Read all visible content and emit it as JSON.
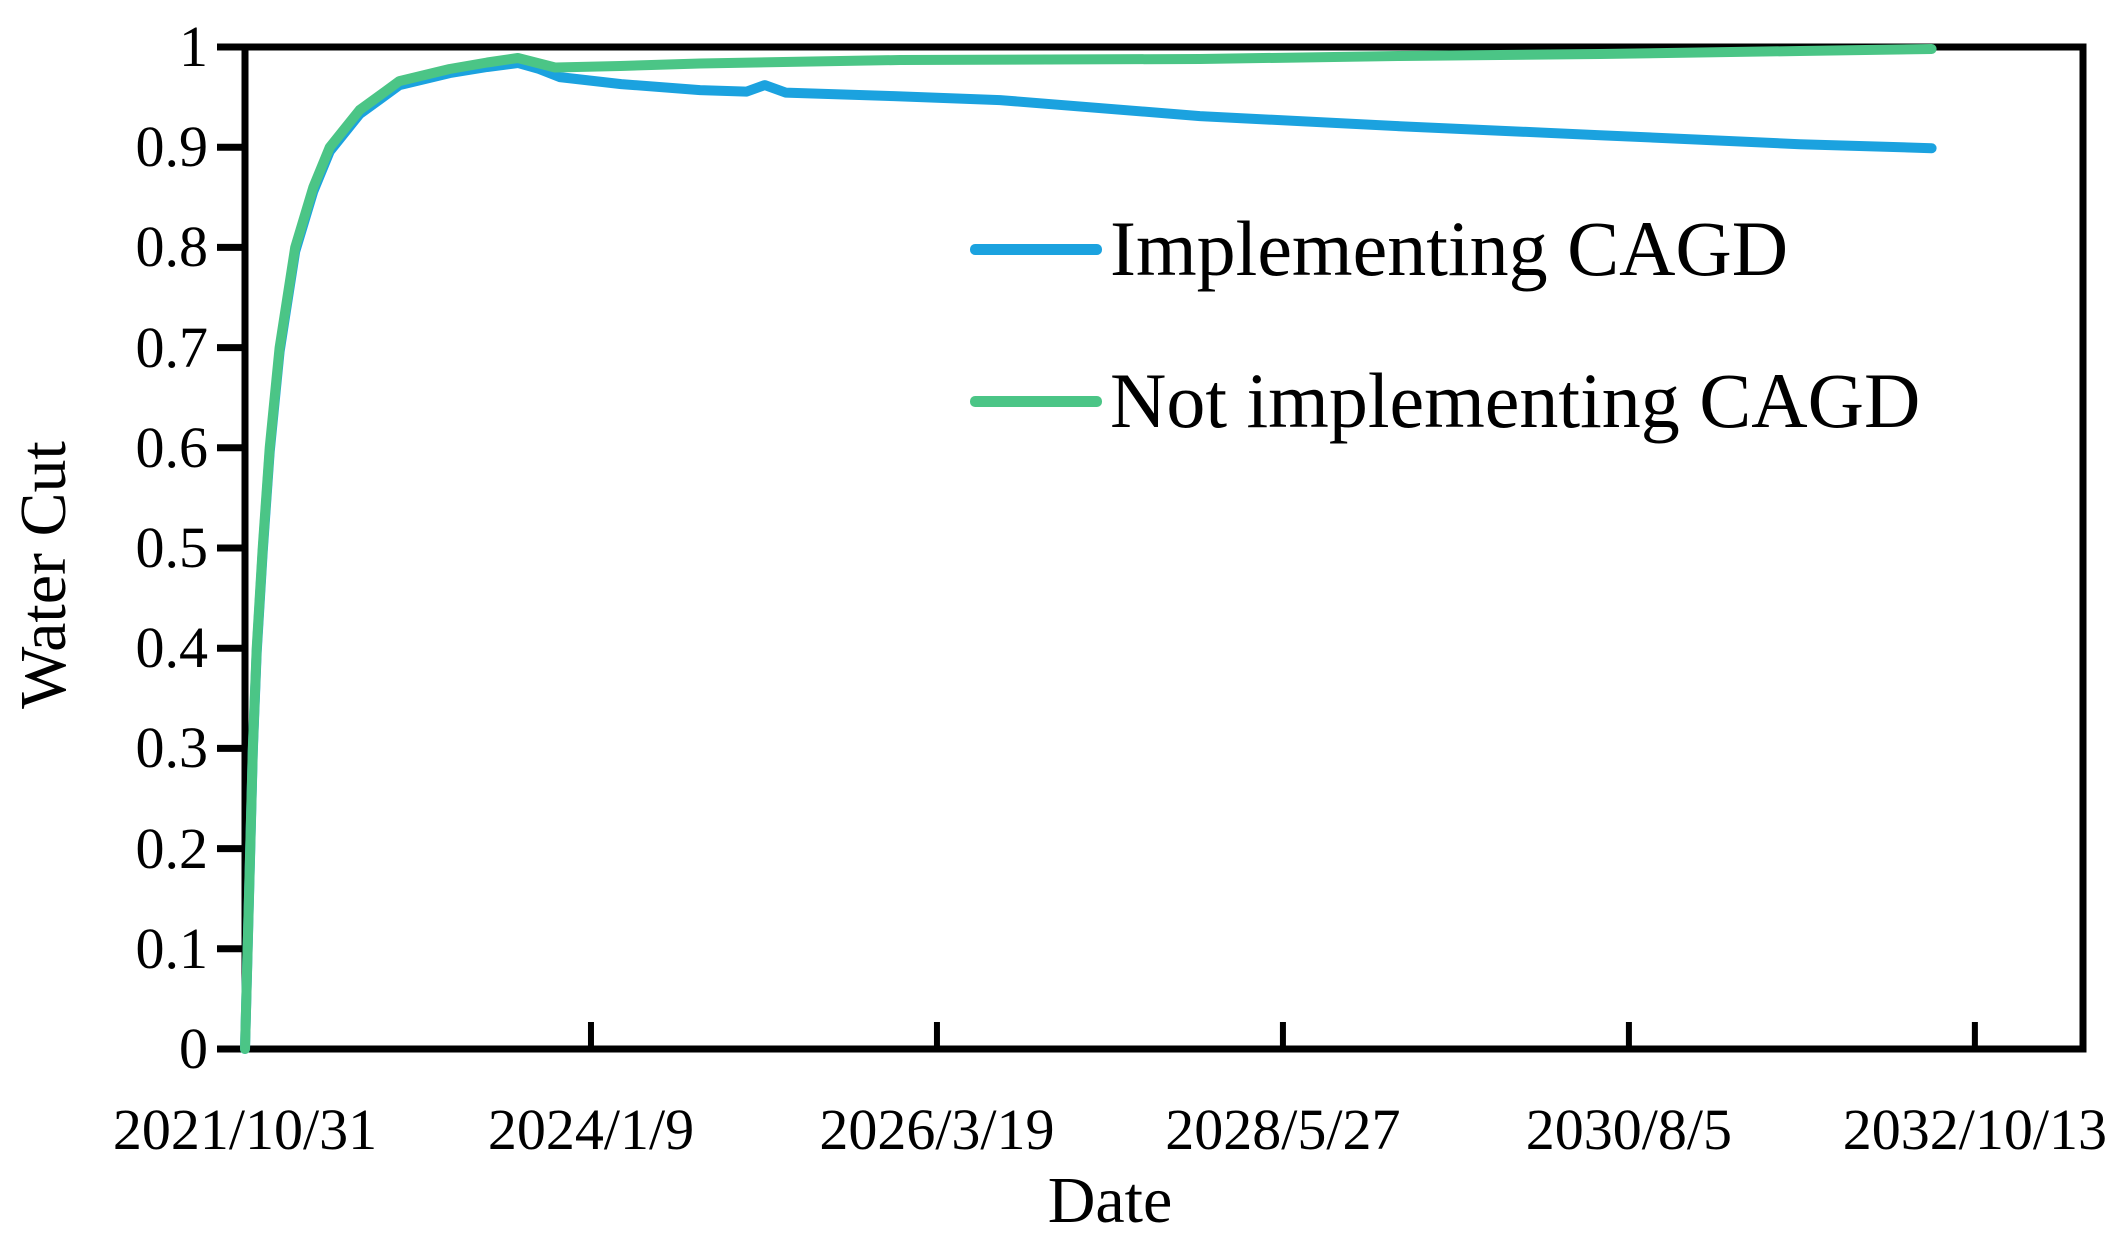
{
  "chart_data": {
    "type": "line",
    "title": "",
    "xlabel": "Date",
    "ylabel": "Water Cut",
    "x_tick_labels": [
      "2021/10/31",
      "2024/1/9",
      "2026/3/19",
      "2028/5/27",
      "2030/8/5",
      "2032/10/13"
    ],
    "x_tick_days": [
      0,
      800,
      1600,
      2400,
      3200,
      4000
    ],
    "x_range_days": [
      0,
      4250
    ],
    "y_tick_labels": [
      "0",
      "0.1",
      "0.2",
      "0.3",
      "0.4",
      "0.5",
      "0.6",
      "0.7",
      "0.8",
      "0.9",
      "1"
    ],
    "y_tick_values": [
      0,
      0.1,
      0.2,
      0.3,
      0.4,
      0.5,
      0.6,
      0.7,
      0.8,
      0.9,
      1
    ],
    "ylim": [
      0,
      1
    ],
    "grid": false,
    "legend_position": "inside-upper-middle",
    "axis_color": "#000000",
    "series": [
      {
        "name": "Implementing CAGD",
        "color": "#1BA2DF",
        "points": [
          [
            0,
            0
          ],
          [
            6,
            0.098
          ],
          [
            12,
            0.197
          ],
          [
            18,
            0.297
          ],
          [
            27,
            0.396
          ],
          [
            41,
            0.496
          ],
          [
            57,
            0.596
          ],
          [
            80,
            0.696
          ],
          [
            116,
            0.796
          ],
          [
            158,
            0.856
          ],
          [
            196,
            0.896
          ],
          [
            265,
            0.933
          ],
          [
            357,
            0.962
          ],
          [
            473,
            0.974
          ],
          [
            560,
            0.98
          ],
          [
            631,
            0.984
          ],
          [
            680,
            0.978
          ],
          [
            728,
            0.97
          ],
          [
            870,
            0.963
          ],
          [
            1052,
            0.957
          ],
          [
            1160,
            0.9555
          ],
          [
            1202,
            0.962
          ],
          [
            1250,
            0.9545
          ],
          [
            1500,
            0.951
          ],
          [
            1746,
            0.947
          ],
          [
            2208,
            0.931
          ],
          [
            2670,
            0.921
          ],
          [
            3133,
            0.912
          ],
          [
            3595,
            0.903
          ],
          [
            3900,
            0.899
          ]
        ]
      },
      {
        "name": "Not implementing CAGD",
        "color": "#4BC586",
        "points": [
          [
            0,
            0
          ],
          [
            6,
            0.1
          ],
          [
            12,
            0.2
          ],
          [
            18,
            0.3
          ],
          [
            27,
            0.4
          ],
          [
            41,
            0.5
          ],
          [
            57,
            0.6
          ],
          [
            80,
            0.7
          ],
          [
            116,
            0.8
          ],
          [
            158,
            0.86
          ],
          [
            196,
            0.9
          ],
          [
            265,
            0.937
          ],
          [
            357,
            0.966
          ],
          [
            473,
            0.978
          ],
          [
            560,
            0.9845
          ],
          [
            631,
            0.989
          ],
          [
            717,
            0.9795
          ],
          [
            867,
            0.981
          ],
          [
            1052,
            0.9835
          ],
          [
            1515,
            0.987
          ],
          [
            2208,
            0.988
          ],
          [
            2670,
            0.991
          ],
          [
            3133,
            0.993
          ],
          [
            3595,
            0.996
          ],
          [
            3900,
            0.998
          ]
        ]
      }
    ]
  }
}
